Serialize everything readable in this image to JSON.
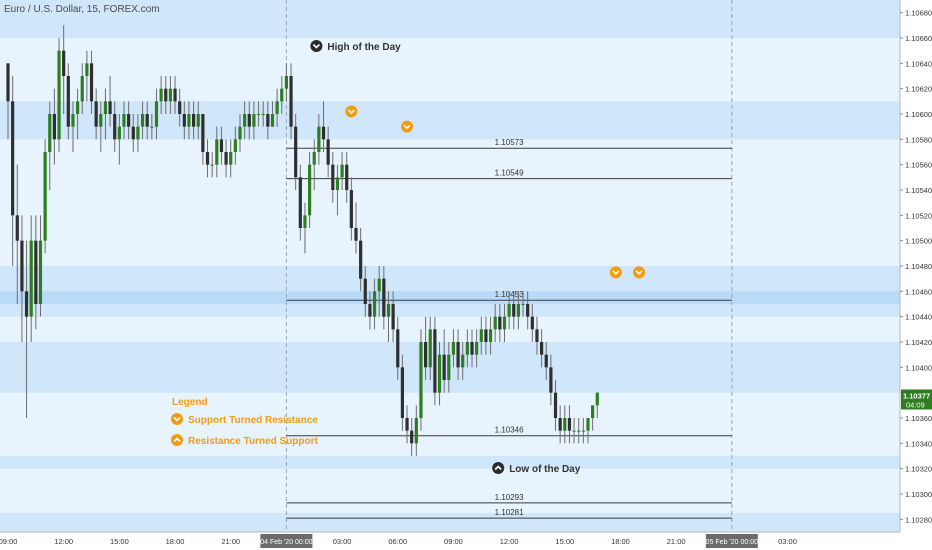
{
  "header": {
    "title": "Euro / U.S. Dollar, 15, FOREX.com"
  },
  "colors": {
    "up": "#2e7d1f",
    "down": "#2f2f2f",
    "wick": "#6d6d6d",
    "band_light": "#e7f3fd",
    "band_mid": "#cfe6fb",
    "band_strong": "#b9dbf8",
    "accent": "#f39c12",
    "price_tag": "#2e7d1f",
    "line": "#3b3b3b"
  },
  "chart_data": {
    "type": "candlestick",
    "symbol": "Euro / U.S. Dollar",
    "timeframe": "15",
    "source": "FOREX.com",
    "ylim": [
      1.1027,
      1.1069
    ],
    "y_ticks": [
      "1.10680",
      "1.10660",
      "1.10640",
      "1.10620",
      "1.10600",
      "1.10580",
      "1.10560",
      "1.10540",
      "1.10520",
      "1.10500",
      "1.10480",
      "1.10460",
      "1.10440",
      "1.10420",
      "1.10400",
      "1.10360",
      "1.10340",
      "1.10320",
      "1.10300",
      "1.10280"
    ],
    "x_ticks": [
      {
        "label": "09:00",
        "bar": 0
      },
      {
        "label": "12:00",
        "bar": 12
      },
      {
        "label": "15:00",
        "bar": 24
      },
      {
        "label": "18:00",
        "bar": 36
      },
      {
        "label": "21:00",
        "bar": 48
      },
      {
        "label": "03:00",
        "bar": 72
      },
      {
        "label": "06:00",
        "bar": 84
      },
      {
        "label": "09:00",
        "bar": 96
      },
      {
        "label": "12:00",
        "bar": 108
      },
      {
        "label": "15:00",
        "bar": 120
      },
      {
        "label": "18:00",
        "bar": 132
      },
      {
        "label": "21:00",
        "bar": 144
      },
      {
        "label": "03:00",
        "bar": 168
      }
    ],
    "date_markers": [
      {
        "label": "04 Feb '20   00:00",
        "bar": 60
      },
      {
        "label": "05 Feb '20   00:00",
        "bar": 156
      }
    ],
    "current_price": {
      "value": "1.10377",
      "time": "04:09",
      "price": 1.10377
    },
    "levels": [
      {
        "label": "1.10573",
        "price": 1.10573
      },
      {
        "label": "1.10549",
        "price": 1.10549
      },
      {
        "label": "1.10453",
        "price": 1.10453
      },
      {
        "label": "1.10346",
        "price": 1.10346
      },
      {
        "label": "1.10293",
        "price": 1.10293
      },
      {
        "label": "1.10281",
        "price": 1.10281
      }
    ],
    "zones": [
      {
        "from": 1.1066,
        "to": 1.1069,
        "tone": "mid"
      },
      {
        "from": 1.1058,
        "to": 1.1061,
        "tone": "mid"
      },
      {
        "from": 1.1044,
        "to": 1.1048,
        "tone": "mid"
      },
      {
        "from": 1.1045,
        "to": 1.1046,
        "tone": "strong"
      },
      {
        "from": 1.1038,
        "to": 1.1042,
        "tone": "mid"
      },
      {
        "from": 1.1032,
        "to": 1.1033,
        "tone": "mid"
      },
      {
        "from": 1.1027,
        "to": 1.10285,
        "tone": "mid"
      }
    ],
    "annotations": {
      "high_label": "High of the Day",
      "low_label": "Low of the Day",
      "legend_title": "Legend",
      "legend_str": "Support Turned Resistance",
      "legend_rts": "Resistance Turned Support"
    },
    "markers": [
      {
        "type": "str",
        "bar": 74,
        "price": 1.10602
      },
      {
        "type": "str",
        "bar": 86,
        "price": 1.1059
      },
      {
        "type": "str",
        "bar": 131,
        "price": 1.10475
      },
      {
        "type": "str",
        "bar": 136,
        "price": 1.10475
      }
    ],
    "candles": [
      [
        1.1064,
        1.1064,
        1.1058,
        1.1061
      ],
      [
        1.1061,
        1.1063,
        1.1048,
        1.1052
      ],
      [
        1.1052,
        1.1056,
        1.1045,
        1.105
      ],
      [
        1.105,
        1.1052,
        1.1042,
        1.1046
      ],
      [
        1.1046,
        1.105,
        1.1036,
        1.1044
      ],
      [
        1.1044,
        1.1052,
        1.1042,
        1.105
      ],
      [
        1.105,
        1.1052,
        1.1043,
        1.1045
      ],
      [
        1.1045,
        1.1052,
        1.1044,
        1.105
      ],
      [
        1.105,
        1.1058,
        1.1049,
        1.1057
      ],
      [
        1.1057,
        1.1061,
        1.1054,
        1.106
      ],
      [
        1.106,
        1.1062,
        1.1056,
        1.1058
      ],
      [
        1.1058,
        1.1066,
        1.1057,
        1.1065
      ],
      [
        1.1065,
        1.1067,
        1.106,
        1.1063
      ],
      [
        1.1063,
        1.1064,
        1.1058,
        1.1059
      ],
      [
        1.1059,
        1.1061,
        1.1057,
        1.106
      ],
      [
        1.106,
        1.1062,
        1.1058,
        1.1061
      ],
      [
        1.1061,
        1.1064,
        1.106,
        1.1063
      ],
      [
        1.1063,
        1.1065,
        1.1061,
        1.1064
      ],
      [
        1.1064,
        1.1065,
        1.106,
        1.1061
      ],
      [
        1.1061,
        1.1062,
        1.1058,
        1.1059
      ],
      [
        1.1059,
        1.1061,
        1.1057,
        1.106
      ],
      [
        1.106,
        1.1062,
        1.1058,
        1.1061
      ],
      [
        1.1061,
        1.1063,
        1.1059,
        1.106
      ],
      [
        1.106,
        1.1061,
        1.1057,
        1.1058
      ],
      [
        1.1058,
        1.106,
        1.1056,
        1.1059
      ],
      [
        1.1059,
        1.1061,
        1.1058,
        1.106
      ],
      [
        1.106,
        1.1061,
        1.1058,
        1.1059
      ],
      [
        1.1059,
        1.106,
        1.1057,
        1.1058
      ],
      [
        1.1058,
        1.106,
        1.1057,
        1.1059
      ],
      [
        1.1059,
        1.1061,
        1.1058,
        1.106
      ],
      [
        1.106,
        1.1061,
        1.1058,
        1.1059
      ],
      [
        1.1059,
        1.106,
        1.1058,
        1.1059
      ],
      [
        1.1059,
        1.1062,
        1.1058,
        1.1061
      ],
      [
        1.1061,
        1.1063,
        1.106,
        1.1062
      ],
      [
        1.1062,
        1.1063,
        1.106,
        1.1061
      ],
      [
        1.1061,
        1.1063,
        1.106,
        1.1062
      ],
      [
        1.1062,
        1.1063,
        1.106,
        1.1061
      ],
      [
        1.1061,
        1.1062,
        1.1059,
        1.106
      ],
      [
        1.106,
        1.1061,
        1.1058,
        1.1059
      ],
      [
        1.1059,
        1.1061,
        1.1058,
        1.106
      ],
      [
        1.106,
        1.1061,
        1.1058,
        1.1059
      ],
      [
        1.1059,
        1.1061,
        1.1058,
        1.106
      ],
      [
        1.106,
        1.106,
        1.1056,
        1.1057
      ],
      [
        1.1057,
        1.1058,
        1.1055,
        1.1056
      ],
      [
        1.1056,
        1.1057,
        1.1055,
        1.1056
      ],
      [
        1.1056,
        1.1059,
        1.1055,
        1.1058
      ],
      [
        1.1058,
        1.1059,
        1.1056,
        1.1057
      ],
      [
        1.1057,
        1.1058,
        1.1055,
        1.1056
      ],
      [
        1.1056,
        1.1058,
        1.1055,
        1.1057
      ],
      [
        1.1057,
        1.1059,
        1.1056,
        1.1058
      ],
      [
        1.1058,
        1.106,
        1.1057,
        1.1059
      ],
      [
        1.1059,
        1.1061,
        1.1058,
        1.106
      ],
      [
        1.106,
        1.1061,
        1.1058,
        1.1059
      ],
      [
        1.1059,
        1.1061,
        1.1058,
        1.106
      ],
      [
        1.106,
        1.1061,
        1.1059,
        1.106
      ],
      [
        1.106,
        1.1061,
        1.1059,
        1.106
      ],
      [
        1.106,
        1.1061,
        1.1058,
        1.1059
      ],
      [
        1.1059,
        1.1061,
        1.1059,
        1.106
      ],
      [
        1.106,
        1.1062,
        1.1059,
        1.1061
      ],
      [
        1.1061,
        1.1063,
        1.106,
        1.1062
      ],
      [
        1.1062,
        1.1064,
        1.1061,
        1.1063
      ],
      [
        1.1063,
        1.1064,
        1.1058,
        1.1059
      ],
      [
        1.1059,
        1.106,
        1.1054,
        1.1055
      ],
      [
        1.1055,
        1.1056,
        1.105,
        1.1051
      ],
      [
        1.1051,
        1.1053,
        1.1049,
        1.1052
      ],
      [
        1.1052,
        1.1057,
        1.1051,
        1.1056
      ],
      [
        1.1056,
        1.1058,
        1.1054,
        1.1057
      ],
      [
        1.1057,
        1.106,
        1.1056,
        1.1059
      ],
      [
        1.1059,
        1.1061,
        1.1057,
        1.1058
      ],
      [
        1.1058,
        1.1059,
        1.1055,
        1.1056
      ],
      [
        1.1056,
        1.1057,
        1.1053,
        1.1054
      ],
      [
        1.1054,
        1.1056,
        1.1052,
        1.1055
      ],
      [
        1.1055,
        1.1057,
        1.1054,
        1.1056
      ],
      [
        1.1056,
        1.1057,
        1.1053,
        1.1054
      ],
      [
        1.1054,
        1.1055,
        1.105,
        1.1051
      ],
      [
        1.1051,
        1.1053,
        1.1049,
        1.105
      ],
      [
        1.105,
        1.1051,
        1.1046,
        1.1047
      ],
      [
        1.1047,
        1.1048,
        1.1044,
        1.1045
      ],
      [
        1.1045,
        1.1046,
        1.1043,
        1.1044
      ],
      [
        1.1044,
        1.1047,
        1.1043,
        1.1046
      ],
      [
        1.1046,
        1.1048,
        1.1044,
        1.1047
      ],
      [
        1.1047,
        1.1048,
        1.1043,
        1.1044
      ],
      [
        1.1044,
        1.1046,
        1.1042,
        1.1045
      ],
      [
        1.1045,
        1.1046,
        1.1042,
        1.1043
      ],
      [
        1.1043,
        1.1044,
        1.1039,
        1.104
      ],
      [
        1.104,
        1.1041,
        1.1035,
        1.1036
      ],
      [
        1.1036,
        1.1037,
        1.1034,
        1.1035
      ],
      [
        1.1035,
        1.1036,
        1.1033,
        1.1034
      ],
      [
        1.1034,
        1.1037,
        1.1033,
        1.1036
      ],
      [
        1.1036,
        1.1043,
        1.1035,
        1.1042
      ],
      [
        1.1042,
        1.1044,
        1.1039,
        1.104
      ],
      [
        1.104,
        1.1044,
        1.1039,
        1.1043
      ],
      [
        1.1043,
        1.1044,
        1.1037,
        1.1038
      ],
      [
        1.1038,
        1.1042,
        1.1037,
        1.1041
      ],
      [
        1.1041,
        1.1043,
        1.1038,
        1.1039
      ],
      [
        1.1039,
        1.1042,
        1.1038,
        1.1041
      ],
      [
        1.1041,
        1.1043,
        1.104,
        1.1042
      ],
      [
        1.1042,
        1.1043,
        1.1039,
        1.104
      ],
      [
        1.104,
        1.1042,
        1.1039,
        1.1041
      ],
      [
        1.1041,
        1.1043,
        1.104,
        1.1042
      ],
      [
        1.1042,
        1.1043,
        1.104,
        1.1041
      ],
      [
        1.1041,
        1.1043,
        1.104,
        1.1042
      ],
      [
        1.1042,
        1.1044,
        1.1041,
        1.1043
      ],
      [
        1.1043,
        1.1044,
        1.1041,
        1.1042
      ],
      [
        1.1042,
        1.1044,
        1.1041,
        1.1043
      ],
      [
        1.1043,
        1.1045,
        1.1042,
        1.1044
      ],
      [
        1.1044,
        1.1045,
        1.1042,
        1.1043
      ],
      [
        1.1043,
        1.1045,
        1.1042,
        1.1044
      ],
      [
        1.1044,
        1.1046,
        1.1043,
        1.1045
      ],
      [
        1.1045,
        1.1046,
        1.1043,
        1.1044
      ],
      [
        1.1044,
        1.1046,
        1.1043,
        1.1045
      ],
      [
        1.1045,
        1.1046,
        1.1044,
        1.1045
      ],
      [
        1.1045,
        1.1046,
        1.1043,
        1.1044
      ],
      [
        1.1044,
        1.1045,
        1.1042,
        1.1043
      ],
      [
        1.1043,
        1.1044,
        1.1041,
        1.1042
      ],
      [
        1.1042,
        1.1043,
        1.104,
        1.1041
      ],
      [
        1.1041,
        1.1042,
        1.1039,
        1.104
      ],
      [
        1.104,
        1.1041,
        1.1037,
        1.1038
      ],
      [
        1.1038,
        1.1039,
        1.1035,
        1.1036
      ],
      [
        1.1036,
        1.1037,
        1.1034,
        1.1035
      ],
      [
        1.1035,
        1.1037,
        1.1034,
        1.1036
      ],
      [
        1.1036,
        1.1037,
        1.1034,
        1.1035
      ],
      [
        1.1035,
        1.1036,
        1.1034,
        1.1035
      ],
      [
        1.1035,
        1.1036,
        1.1034,
        1.1035
      ],
      [
        1.1035,
        1.1036,
        1.1034,
        1.1035
      ],
      [
        1.1035,
        1.1036,
        1.1034,
        1.1036
      ],
      [
        1.1036,
        1.1037,
        1.1035,
        1.1037
      ],
      [
        1.1037,
        1.1038,
        1.1036,
        1.1038
      ]
    ]
  }
}
